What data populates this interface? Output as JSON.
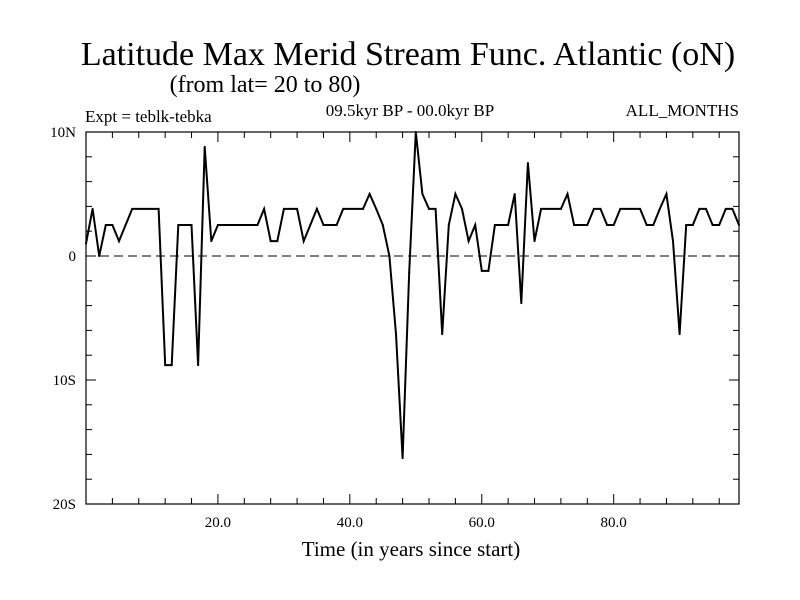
{
  "chart_data": {
    "type": "line",
    "title": "Latitude Max Merid Stream Func. Atlantic (oN)",
    "subtitle": "(from lat= 20 to 80)",
    "expt_label": "Expt = teblk-tebka",
    "period_label": "09.5kyr BP - 00.0kyr BP",
    "months_label": "ALL_MONTHS",
    "xlabel": "Time (in years since start)",
    "ylabel": "",
    "xlim": [
      0,
      99
    ],
    "ylim": [
      -20,
      10
    ],
    "x_ticks": [
      {
        "value": 20,
        "label": "20.0"
      },
      {
        "value": 40,
        "label": "40.0"
      },
      {
        "value": 60,
        "label": "60.0"
      },
      {
        "value": 80,
        "label": "80.0"
      }
    ],
    "y_ticks": [
      {
        "value": 10,
        "label": "10N"
      },
      {
        "value": 0,
        "label": "0"
      },
      {
        "value": -10,
        "label": "10S"
      },
      {
        "value": -20,
        "label": "20S"
      }
    ],
    "zero_line": true,
    "series": [
      {
        "name": "max merid stream func",
        "x": [
          0,
          1,
          2,
          3,
          4,
          5,
          6,
          7,
          8,
          9,
          10,
          11,
          12,
          13,
          14,
          15,
          16,
          17,
          18,
          19,
          20,
          21,
          22,
          23,
          24,
          25,
          26,
          27,
          28,
          29,
          30,
          31,
          32,
          33,
          34,
          35,
          36,
          37,
          38,
          39,
          40,
          41,
          42,
          43,
          44,
          45,
          46,
          47,
          48,
          49,
          50,
          51,
          52,
          53,
          54,
          55,
          56,
          57,
          58,
          59,
          60,
          61,
          62,
          63,
          64,
          65,
          66,
          67,
          68,
          69,
          70,
          71,
          72,
          73,
          74,
          75,
          76,
          77,
          78,
          79,
          80,
          81,
          82,
          83,
          84,
          85,
          86,
          87,
          88,
          89,
          90,
          91,
          92,
          93,
          94,
          95,
          96,
          97,
          98,
          99
        ],
        "values": [
          1,
          3.8,
          0,
          2.5,
          2.5,
          1.2,
          2.5,
          3.8,
          3.8,
          3.8,
          3.8,
          3.8,
          -8.8,
          -8.8,
          2.5,
          2.5,
          2.5,
          -8.8,
          8.8,
          1.2,
          2.5,
          2.5,
          2.5,
          2.5,
          2.5,
          2.5,
          2.5,
          3.8,
          1.2,
          1.2,
          3.8,
          3.8,
          3.8,
          1.2,
          2.5,
          3.8,
          2.5,
          2.5,
          2.5,
          3.8,
          3.8,
          3.8,
          3.8,
          5,
          3.8,
          2.5,
          0,
          -6.3,
          -16.3,
          -1.3,
          10,
          5,
          3.8,
          3.8,
          -6.3,
          2.5,
          5,
          3.8,
          1.2,
          2.5,
          -1.2,
          -1.2,
          2.5,
          2.5,
          2.5,
          5,
          -3.8,
          7.5,
          1.2,
          3.8,
          3.8,
          3.8,
          3.8,
          5,
          2.5,
          2.5,
          2.5,
          3.8,
          3.8,
          2.5,
          2.5,
          3.8,
          3.8,
          3.8,
          3.8,
          2.5,
          2.5,
          3.8,
          5,
          1.2,
          -6.3,
          2.5,
          2.5,
          3.8,
          3.8,
          2.5,
          2.5,
          3.8,
          3.8,
          2.5
        ]
      }
    ]
  },
  "colors": {
    "line": "#000000",
    "background": "#ffffff"
  }
}
